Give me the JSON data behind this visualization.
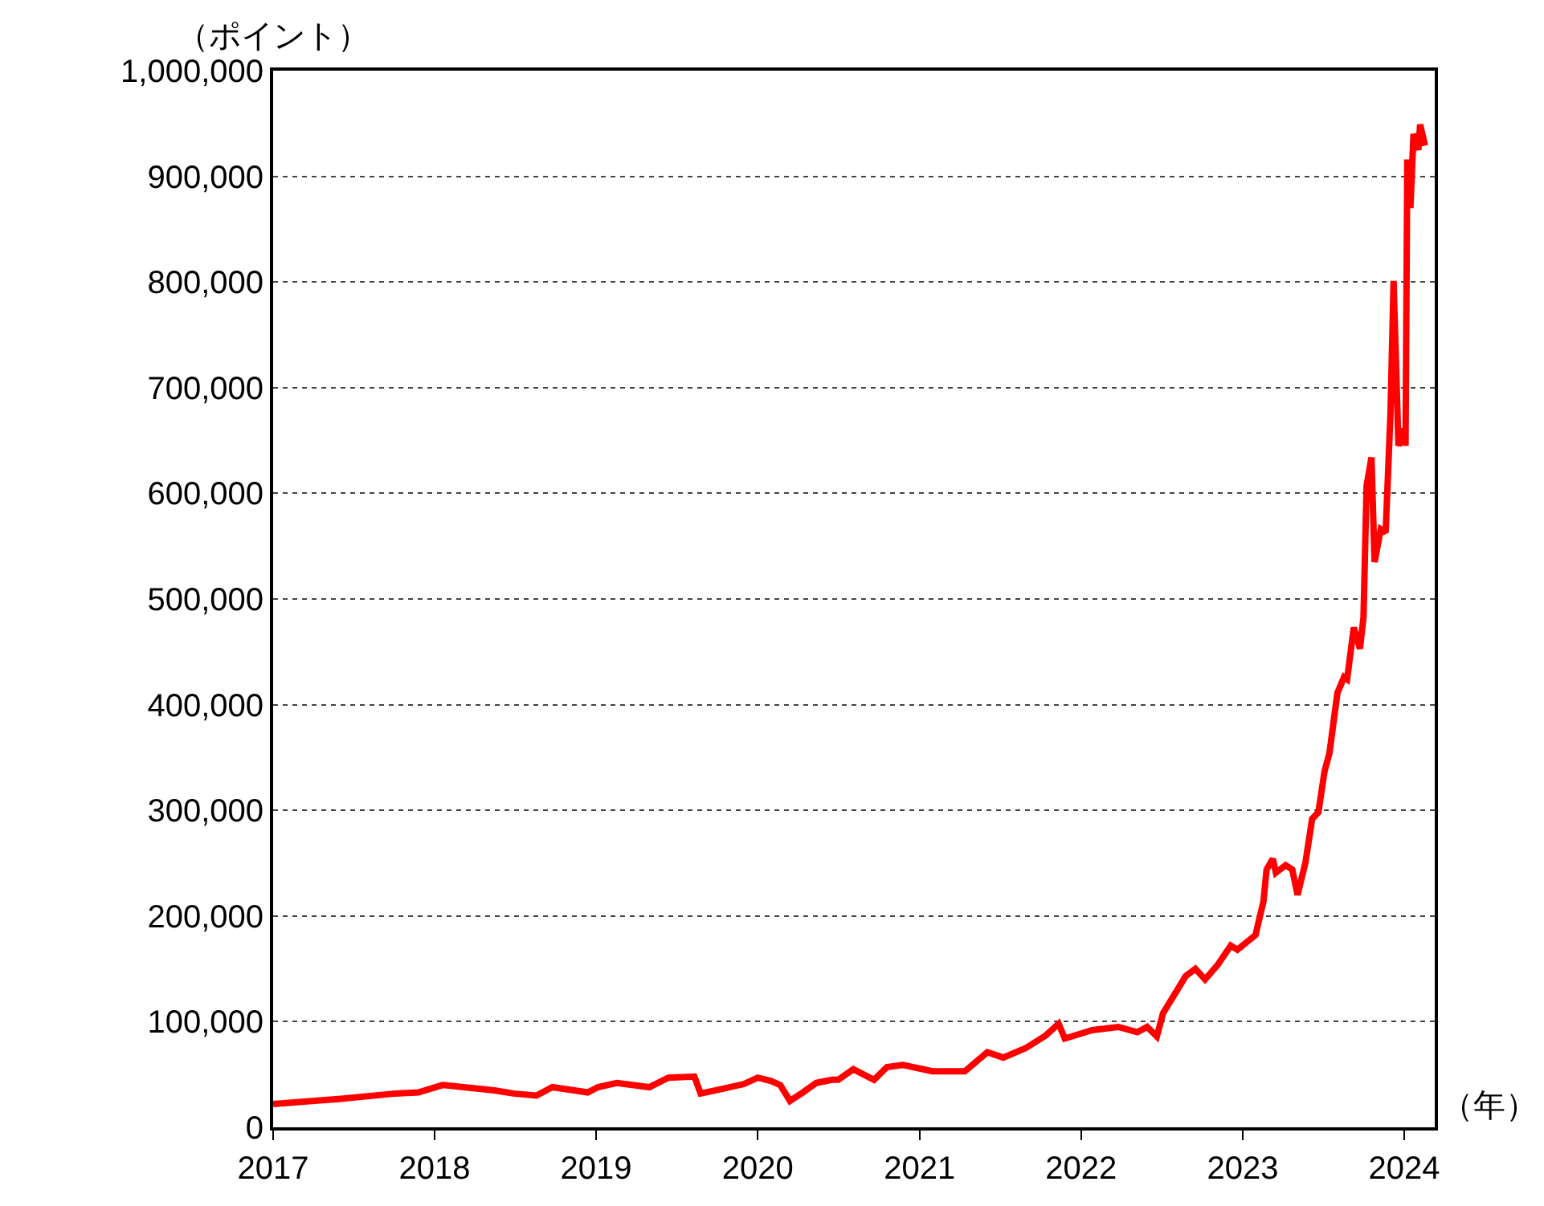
{
  "chart_data": {
    "type": "line",
    "xlabel": "（年）",
    "ylabel": "（ポイント）",
    "x": [
      "2017-01-01",
      "2017-06-03",
      "2017-10-05",
      "2017-11-25",
      "2018-01-19",
      "2018-05-16",
      "2018-06-28",
      "2018-08-19",
      "2018-09-24",
      "2018-12-13",
      "2019-01-05",
      "2019-02-17",
      "2019-05-01",
      "2019-06-13",
      "2019-08-11",
      "2019-08-25",
      "2019-10-09",
      "2019-12-01",
      "2020-01-01",
      "2020-01-30",
      "2020-02-21",
      "2020-03-14",
      "2020-04-12",
      "2020-05-12",
      "2020-06-17",
      "2020-07-01",
      "2020-08-04",
      "2020-09-20",
      "2020-10-19",
      "2020-11-24",
      "2021-01-30",
      "2021-04-13",
      "2021-06-03",
      "2021-07-09",
      "2021-08-29",
      "2021-10-13",
      "2021-11-11",
      "2021-11-25",
      "2022-01-26",
      "2022-03-26",
      "2022-05-08",
      "2022-05-30",
      "2022-06-21",
      "2022-07-05",
      "2022-07-27",
      "2022-08-25",
      "2022-09-16",
      "2022-10-08",
      "2022-11-06",
      "2022-12-05",
      "2022-12-20",
      "2023-01-30",
      "2023-02-17",
      "2023-02-24",
      "2023-03-10",
      "2023-03-17",
      "2023-04-08",
      "2023-04-23",
      "2023-05-05",
      "2023-05-23",
      "2023-06-07",
      "2023-06-21",
      "2023-07-05",
      "2023-07-16",
      "2023-08-03",
      "2023-08-18",
      "2023-08-25",
      "2023-09-09",
      "2023-09-23",
      "2023-10-01",
      "2023-10-08",
      "2023-10-19",
      "2023-10-26",
      "2023-11-09",
      "2023-11-20",
      "2023-12-01",
      "2023-12-08",
      "2023-12-19",
      "2024-01-01",
      "2024-01-04",
      "2024-01-08",
      "2024-01-15",
      "2024-01-22",
      "2024-02-02",
      "2024-02-06",
      "2024-02-17"
    ],
    "series": [
      {
        "color": "#ff0000",
        "values": [
          22000,
          27000,
          32000,
          33000,
          40000,
          35000,
          32000,
          30000,
          38000,
          33000,
          38000,
          42000,
          38000,
          47000,
          48000,
          32000,
          36000,
          41000,
          47000,
          44000,
          40000,
          25000,
          33000,
          42000,
          45000,
          45000,
          55000,
          45000,
          57000,
          59000,
          53000,
          53000,
          71000,
          66000,
          75000,
          87000,
          98000,
          84000,
          92000,
          95000,
          90000,
          95000,
          86000,
          108000,
          123000,
          143000,
          150000,
          140000,
          154000,
          172000,
          168000,
          182000,
          214000,
          244000,
          254000,
          241000,
          248000,
          244000,
          220000,
          251000,
          292000,
          298000,
          337000,
          354000,
          411000,
          426000,
          424000,
          473000,
          453000,
          483000,
          607000,
          634000,
          535000,
          566000,
          563000,
          676000,
          801000,
          645000,
          661000,
          645000,
          916000,
          870000,
          940000,
          925000,
          949000,
          929000
        ]
      }
    ],
    "xlim": [
      "2017-01-01",
      "2024-03-10"
    ],
    "xticks": [
      {
        "value": "2017-01-01",
        "label": "2017"
      },
      {
        "value": "2018-01-01",
        "label": "2018"
      },
      {
        "value": "2019-01-01",
        "label": "2019"
      },
      {
        "value": "2020-01-01",
        "label": "2020"
      },
      {
        "value": "2021-01-01",
        "label": "2021"
      },
      {
        "value": "2022-01-01",
        "label": "2022"
      },
      {
        "value": "2023-01-01",
        "label": "2023"
      },
      {
        "value": "2024-01-01",
        "label": "2024"
      }
    ],
    "ylim": [
      0,
      1000000
    ],
    "yticks": [
      0,
      {
        "value": 100000,
        "label": "100,000"
      },
      {
        "value": 200000,
        "label": "200,000"
      },
      {
        "value": 300000,
        "label": "300,000"
      },
      {
        "value": 400000,
        "label": "400,000"
      },
      {
        "value": 500000,
        "label": "500,000"
      },
      {
        "value": 600000,
        "label": "600,000"
      },
      {
        "value": 700000,
        "label": "700,000"
      },
      {
        "value": 800000,
        "label": "800,000"
      },
      {
        "value": 900000,
        "label": "900,000"
      },
      {
        "value": 1000000,
        "label": "1,000,000"
      }
    ],
    "grid": "y",
    "marker": "none",
    "line_style": "solid"
  }
}
